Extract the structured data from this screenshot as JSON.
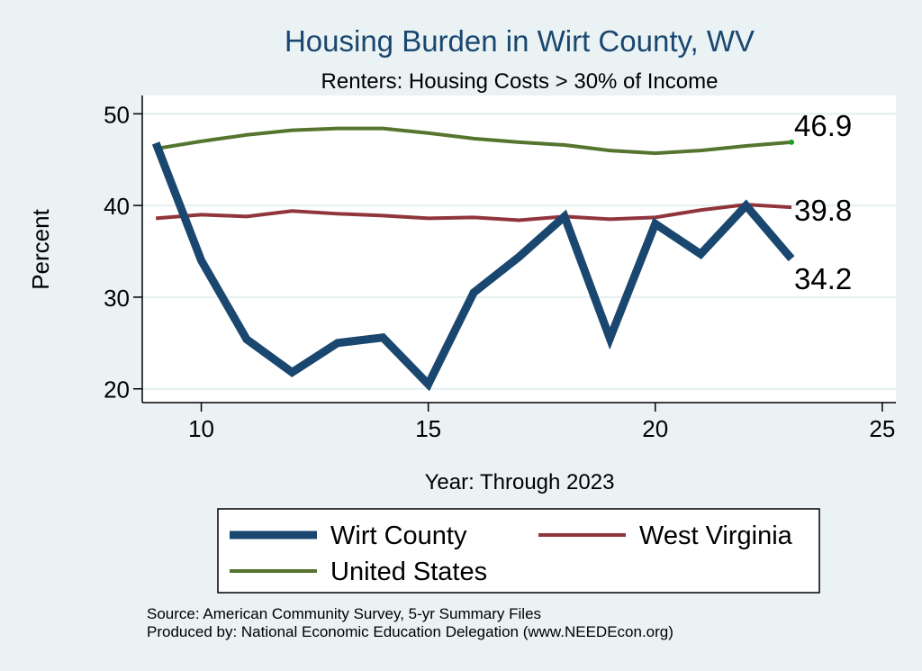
{
  "chart_data": {
    "type": "line",
    "title": "Housing Burden in Wirt County, WV",
    "subtitle": "Renters: Housing Costs > 30% of Income",
    "xlabel": "Year: Through 2023",
    "ylabel": "Percent",
    "xlim": [
      8.7,
      25.3
    ],
    "ylim": [
      18.5,
      52
    ],
    "x_ticks": [
      10,
      15,
      20,
      25
    ],
    "y_ticks": [
      20,
      30,
      40,
      50
    ],
    "grid": true,
    "legend_position": "bottom",
    "series": [
      {
        "name": "Wirt County",
        "color": "#1a476f",
        "x": [
          9,
          10,
          11,
          12,
          13,
          14,
          15,
          16,
          17,
          18,
          19,
          20,
          21,
          22,
          23
        ],
        "y": [
          46.8,
          34.0,
          25.4,
          21.8,
          25.0,
          25.6,
          20.5,
          30.5,
          34.4,
          38.8,
          25.5,
          38.0,
          34.7,
          40.0,
          34.2
        ],
        "end_label": "34.2"
      },
      {
        "name": "West Virginia",
        "color": "#90353b",
        "x": [
          9,
          10,
          11,
          12,
          13,
          14,
          15,
          16,
          17,
          18,
          19,
          20,
          21,
          22,
          23
        ],
        "y": [
          38.6,
          39.0,
          38.8,
          39.4,
          39.1,
          38.9,
          38.6,
          38.7,
          38.4,
          38.8,
          38.5,
          38.7,
          39.5,
          40.1,
          39.8
        ],
        "end_label": "39.8"
      },
      {
        "name": "United States",
        "color": "#55752f",
        "x": [
          9,
          10,
          11,
          12,
          13,
          14,
          15,
          16,
          17,
          18,
          19,
          20,
          21,
          22,
          23
        ],
        "y": [
          46.2,
          47.0,
          47.7,
          48.2,
          48.4,
          48.4,
          47.9,
          47.3,
          46.9,
          46.6,
          46.0,
          45.7,
          46.0,
          46.5,
          46.9
        ],
        "end_label": "46.9"
      }
    ],
    "legend": {
      "rows": [
        [
          "Wirt County",
          "West Virginia"
        ],
        [
          "United States"
        ]
      ]
    }
  },
  "footer": {
    "source": "Source: American Community Survey, 5-yr Summary Files",
    "produced": "Produced by: National Economic Education Delegation (www.NEEDEcon.org)"
  }
}
